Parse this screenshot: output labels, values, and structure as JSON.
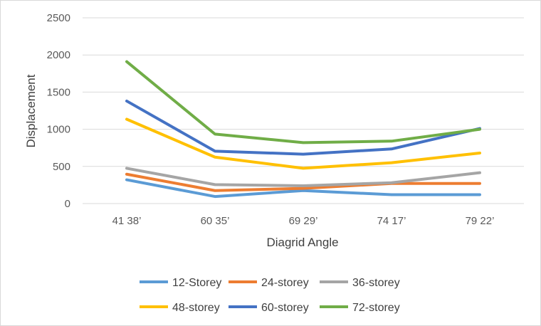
{
  "chart_data": {
    "type": "line",
    "title": "",
    "xlabel": "Diagrid Angle",
    "ylabel": "Displacement",
    "categories": [
      "41 38’",
      "60 35’",
      "69 29’",
      "74 17’",
      "79 22’"
    ],
    "ylim": [
      0,
      2500
    ],
    "yticks": [
      "0",
      "500",
      "1000",
      "1500",
      "2000",
      "2500"
    ],
    "grid": true,
    "legend_position": "bottom",
    "series": [
      {
        "name": "12-Storey",
        "color": "#5B9BD5",
        "values": [
          320,
          95,
          175,
          120,
          120
        ]
      },
      {
        "name": "24-storey",
        "color": "#ED7D31",
        "values": [
          395,
          175,
          205,
          270,
          270
        ]
      },
      {
        "name": "36-storey",
        "color": "#A5A5A5",
        "values": [
          475,
          255,
          240,
          280,
          415
        ]
      },
      {
        "name": "48-storey",
        "color": "#FFC000",
        "values": [
          1135,
          625,
          475,
          550,
          680
        ]
      },
      {
        "name": "60-storey",
        "color": "#4472C4",
        "values": [
          1380,
          705,
          665,
          735,
          1010
        ]
      },
      {
        "name": "72-storey",
        "color": "#70AD47",
        "values": [
          1910,
          935,
          820,
          840,
          1000
        ]
      }
    ]
  }
}
